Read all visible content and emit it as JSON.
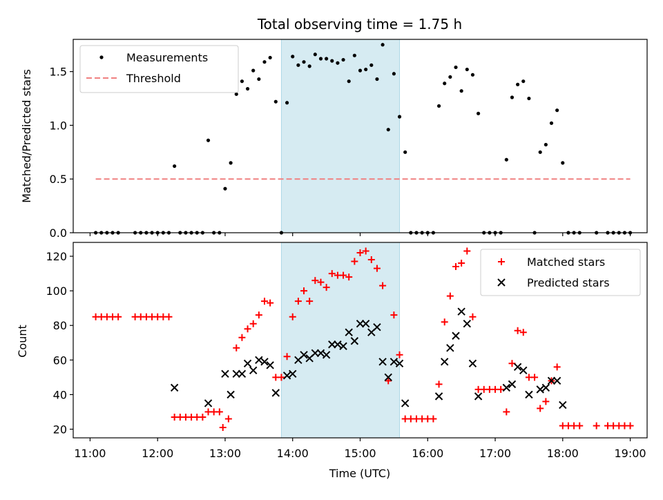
{
  "chart_data": [
    {
      "type": "scatter",
      "title": "Total observing time = 1.75 h",
      "xlabel": "",
      "ylabel": "Matched/Predicted stars",
      "ylim": [
        0,
        1.8
      ],
      "xlim": [
        "10:45",
        "19:15"
      ],
      "yticks": [
        "0.0",
        "0.5",
        "1.0",
        "1.5"
      ],
      "legend_position": "top-left",
      "shaded_interval": [
        "13:50",
        "15:35"
      ],
      "colors": {
        "measurements": "#000000",
        "threshold": "#f08080",
        "shade": "#add8e6"
      },
      "series": [
        {
          "name": "Measurements",
          "points": [
            [
              "11:05",
              0
            ],
            [
              "11:10",
              0
            ],
            [
              "11:15",
              0
            ],
            [
              "11:20",
              0
            ],
            [
              "11:25",
              0
            ],
            [
              "11:40",
              0
            ],
            [
              "11:45",
              0
            ],
            [
              "11:50",
              0
            ],
            [
              "11:55",
              0
            ],
            [
              "12:00",
              0
            ],
            [
              "12:05",
              0
            ],
            [
              "12:10",
              0
            ],
            [
              "12:15",
              0.62
            ],
            [
              "12:20",
              0
            ],
            [
              "12:25",
              0
            ],
            [
              "12:30",
              0
            ],
            [
              "12:35",
              0
            ],
            [
              "12:40",
              0
            ],
            [
              "12:45",
              0.86
            ],
            [
              "12:50",
              0
            ],
            [
              "12:55",
              0
            ],
            [
              "13:00",
              0.41
            ],
            [
              "13:05",
              0.65
            ],
            [
              "13:10",
              1.29
            ],
            [
              "13:15",
              1.41
            ],
            [
              "13:20",
              1.34
            ],
            [
              "13:25",
              1.51
            ],
            [
              "13:30",
              1.43
            ],
            [
              "13:35",
              1.59
            ],
            [
              "13:40",
              1.63
            ],
            [
              "13:45",
              1.22
            ],
            [
              "13:50",
              0
            ],
            [
              "13:55",
              1.21
            ],
            [
              "14:00",
              1.64
            ],
            [
              "14:05",
              1.56
            ],
            [
              "14:10",
              1.59
            ],
            [
              "14:15",
              1.55
            ],
            [
              "14:20",
              1.66
            ],
            [
              "14:25",
              1.62
            ],
            [
              "14:30",
              1.62
            ],
            [
              "14:35",
              1.6
            ],
            [
              "14:40",
              1.58
            ],
            [
              "14:45",
              1.61
            ],
            [
              "14:50",
              1.41
            ],
            [
              "14:55",
              1.65
            ],
            [
              "15:00",
              1.51
            ],
            [
              "15:05",
              1.52
            ],
            [
              "15:10",
              1.56
            ],
            [
              "15:15",
              1.43
            ],
            [
              "15:20",
              1.75
            ],
            [
              "15:25",
              0.96
            ],
            [
              "15:30",
              1.48
            ],
            [
              "15:35",
              1.08
            ],
            [
              "15:40",
              0.75
            ],
            [
              "15:45",
              0
            ],
            [
              "15:50",
              0
            ],
            [
              "15:55",
              0
            ],
            [
              "16:00",
              0
            ],
            [
              "16:05",
              0
            ],
            [
              "16:10",
              1.18
            ],
            [
              "16:15",
              1.39
            ],
            [
              "16:20",
              1.45
            ],
            [
              "16:25",
              1.54
            ],
            [
              "16:30",
              1.32
            ],
            [
              "16:35",
              1.52
            ],
            [
              "16:40",
              1.47
            ],
            [
              "16:45",
              1.11
            ],
            [
              "16:50",
              0
            ],
            [
              "16:55",
              0
            ],
            [
              "17:00",
              0
            ],
            [
              "17:05",
              0
            ],
            [
              "17:10",
              0.68
            ],
            [
              "17:15",
              1.26
            ],
            [
              "17:20",
              1.38
            ],
            [
              "17:25",
              1.41
            ],
            [
              "17:30",
              1.25
            ],
            [
              "17:35",
              0
            ],
            [
              "17:40",
              0.75
            ],
            [
              "17:45",
              0.82
            ],
            [
              "17:50",
              1.02
            ],
            [
              "17:55",
              1.14
            ],
            [
              "18:00",
              0.65
            ],
            [
              "18:05",
              0
            ],
            [
              "18:10",
              0
            ],
            [
              "18:15",
              0
            ],
            [
              "18:30",
              0
            ],
            [
              "18:40",
              0
            ],
            [
              "18:45",
              0
            ],
            [
              "18:50",
              0
            ],
            [
              "18:55",
              0
            ],
            [
              "19:00",
              0
            ]
          ]
        },
        {
          "name": "Threshold",
          "style": "dashed",
          "points": [
            [
              "11:05",
              0.5
            ],
            [
              "19:00",
              0.5
            ]
          ]
        }
      ]
    },
    {
      "type": "scatter",
      "title": "",
      "xlabel": "Time (UTC)",
      "ylabel": "Count",
      "ylim": [
        15,
        128
      ],
      "xlim": [
        "10:45",
        "19:15"
      ],
      "xticks": [
        "11:00",
        "12:00",
        "13:00",
        "14:00",
        "15:00",
        "16:00",
        "17:00",
        "18:00",
        "19:00"
      ],
      "yticks": [
        "20",
        "40",
        "60",
        "80",
        "100",
        "120"
      ],
      "legend_position": "top-right",
      "shaded_interval": [
        "13:50",
        "15:35"
      ],
      "colors": {
        "matched": "#ff0000",
        "predicted": "#000000",
        "shade": "#add8e6"
      },
      "series": [
        {
          "name": "Matched stars",
          "marker": "plus",
          "points": [
            [
              "11:05",
              85
            ],
            [
              "11:10",
              85
            ],
            [
              "11:15",
              85
            ],
            [
              "11:20",
              85
            ],
            [
              "11:25",
              85
            ],
            [
              "11:40",
              85
            ],
            [
              "11:45",
              85
            ],
            [
              "11:50",
              85
            ],
            [
              "11:55",
              85
            ],
            [
              "12:00",
              85
            ],
            [
              "12:05",
              85
            ],
            [
              "12:10",
              85
            ],
            [
              "12:15",
              27
            ],
            [
              "12:20",
              27
            ],
            [
              "12:25",
              27
            ],
            [
              "12:30",
              27
            ],
            [
              "12:35",
              27
            ],
            [
              "12:40",
              27
            ],
            [
              "12:45",
              30
            ],
            [
              "12:50",
              30
            ],
            [
              "12:55",
              30
            ],
            [
              "12:58",
              21
            ],
            [
              "13:03",
              26
            ],
            [
              "13:10",
              67
            ],
            [
              "13:15",
              73
            ],
            [
              "13:20",
              78
            ],
            [
              "13:25",
              81
            ],
            [
              "13:30",
              86
            ],
            [
              "13:35",
              94
            ],
            [
              "13:40",
              93
            ],
            [
              "13:45",
              50
            ],
            [
              "13:50",
              50
            ],
            [
              "13:55",
              62
            ],
            [
              "14:00",
              85
            ],
            [
              "14:05",
              94
            ],
            [
              "14:10",
              100
            ],
            [
              "14:15",
              94
            ],
            [
              "14:20",
              106
            ],
            [
              "14:25",
              105
            ],
            [
              "14:30",
              102
            ],
            [
              "14:35",
              110
            ],
            [
              "14:40",
              109
            ],
            [
              "14:45",
              109
            ],
            [
              "14:50",
              108
            ],
            [
              "14:55",
              117
            ],
            [
              "15:00",
              122
            ],
            [
              "15:05",
              123
            ],
            [
              "15:10",
              118
            ],
            [
              "15:15",
              113
            ],
            [
              "15:20",
              103
            ],
            [
              "15:25",
              48
            ],
            [
              "15:30",
              86
            ],
            [
              "15:35",
              63
            ],
            [
              "15:40",
              26
            ],
            [
              "15:45",
              26
            ],
            [
              "15:50",
              26
            ],
            [
              "15:55",
              26
            ],
            [
              "16:00",
              26
            ],
            [
              "16:05",
              26
            ],
            [
              "16:10",
              46
            ],
            [
              "16:15",
              82
            ],
            [
              "16:20",
              97
            ],
            [
              "16:25",
              114
            ],
            [
              "16:30",
              116
            ],
            [
              "16:35",
              123
            ],
            [
              "16:40",
              85
            ],
            [
              "16:45",
              43
            ],
            [
              "16:50",
              43
            ],
            [
              "16:55",
              43
            ],
            [
              "17:00",
              43
            ],
            [
              "17:05",
              43
            ],
            [
              "17:10",
              30
            ],
            [
              "17:15",
              58
            ],
            [
              "17:20",
              77
            ],
            [
              "17:25",
              76
            ],
            [
              "17:30",
              50
            ],
            [
              "17:35",
              50
            ],
            [
              "17:40",
              32
            ],
            [
              "17:45",
              36
            ],
            [
              "17:50",
              48
            ],
            [
              "17:55",
              56
            ],
            [
              "18:00",
              22
            ],
            [
              "18:05",
              22
            ],
            [
              "18:10",
              22
            ],
            [
              "18:15",
              22
            ],
            [
              "18:30",
              22
            ],
            [
              "18:40",
              22
            ],
            [
              "18:45",
              22
            ],
            [
              "18:50",
              22
            ],
            [
              "18:55",
              22
            ],
            [
              "19:00",
              22
            ]
          ]
        },
        {
          "name": "Predicted stars",
          "marker": "x",
          "points": [
            [
              "12:15",
              44
            ],
            [
              "12:45",
              35
            ],
            [
              "13:00",
              52
            ],
            [
              "13:05",
              40
            ],
            [
              "13:10",
              52
            ],
            [
              "13:15",
              52
            ],
            [
              "13:20",
              58
            ],
            [
              "13:25",
              54
            ],
            [
              "13:30",
              60
            ],
            [
              "13:35",
              59
            ],
            [
              "13:40",
              57
            ],
            [
              "13:45",
              41
            ],
            [
              "13:55",
              51
            ],
            [
              "14:00",
              52
            ],
            [
              "14:05",
              60
            ],
            [
              "14:10",
              63
            ],
            [
              "14:15",
              61
            ],
            [
              "14:20",
              64
            ],
            [
              "14:25",
              64
            ],
            [
              "14:30",
              63
            ],
            [
              "14:35",
              69
            ],
            [
              "14:40",
              69
            ],
            [
              "14:45",
              68
            ],
            [
              "14:50",
              76
            ],
            [
              "14:55",
              71
            ],
            [
              "15:00",
              81
            ],
            [
              "15:05",
              81
            ],
            [
              "15:10",
              76
            ],
            [
              "15:15",
              79
            ],
            [
              "15:20",
              59
            ],
            [
              "15:25",
              50
            ],
            [
              "15:30",
              59
            ],
            [
              "15:35",
              58
            ],
            [
              "15:40",
              35
            ],
            [
              "16:10",
              39
            ],
            [
              "16:15",
              59
            ],
            [
              "16:20",
              67
            ],
            [
              "16:25",
              74
            ],
            [
              "16:30",
              88
            ],
            [
              "16:35",
              81
            ],
            [
              "16:40",
              58
            ],
            [
              "16:45",
              39
            ],
            [
              "17:10",
              44
            ],
            [
              "17:15",
              46
            ],
            [
              "17:20",
              56
            ],
            [
              "17:25",
              54
            ],
            [
              "17:30",
              40
            ],
            [
              "17:40",
              43
            ],
            [
              "17:45",
              44
            ],
            [
              "17:50",
              48
            ],
            [
              "17:55",
              48
            ],
            [
              "18:00",
              34
            ]
          ]
        }
      ]
    }
  ]
}
